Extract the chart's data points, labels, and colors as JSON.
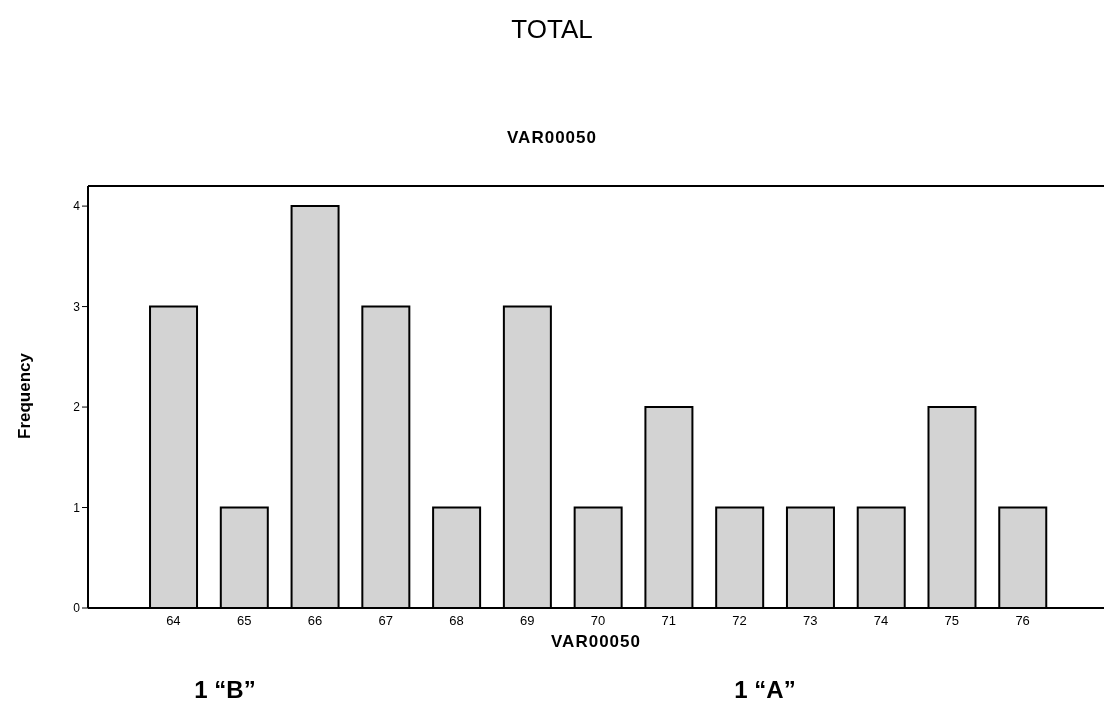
{
  "chart_data": {
    "type": "bar",
    "title": "TOTAL",
    "subtitle": "VAR00050",
    "xlabel": "VAR00050",
    "ylabel": "Frequency",
    "categories": [
      "64",
      "65",
      "66",
      "67",
      "68",
      "69",
      "70",
      "71",
      "72",
      "73",
      "74",
      "75",
      "76"
    ],
    "values": [
      3,
      1,
      4,
      3,
      1,
      3,
      1,
      2,
      1,
      1,
      1,
      2,
      1
    ],
    "color": "#d3d3d3",
    "ylim": [
      0,
      4.2
    ],
    "yticks": [
      0,
      1,
      2,
      3,
      4
    ],
    "annotations": [
      "1 “B”",
      "1 “A”"
    ]
  }
}
